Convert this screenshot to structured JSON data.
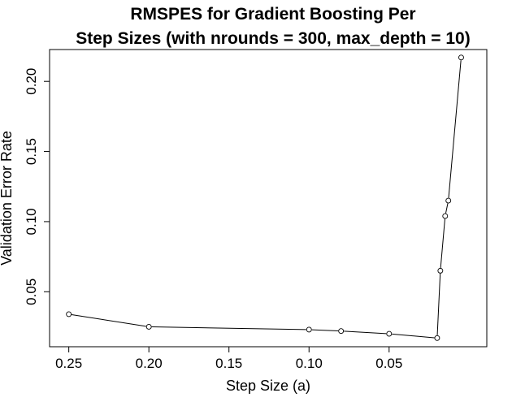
{
  "chart_data": {
    "type": "line",
    "title_lines": [
      "RMSPES for Gradient Boosting Per",
      "Step Sizes (with nrounds = 300, max_depth = 10)"
    ],
    "xlabel": "Step Size (a)",
    "ylabel": "Validation Error Rate",
    "x_reversed": true,
    "xlim": [
      0.262,
      -0.011
    ],
    "ylim": [
      0.0108,
      0.2227
    ],
    "x_ticks": [
      0.25,
      0.2,
      0.15,
      0.1,
      0.05
    ],
    "x_tick_labels": [
      "0.25",
      "0.20",
      "0.15",
      "0.10",
      "0.05"
    ],
    "y_ticks": [
      0.05,
      0.1,
      0.15,
      0.2
    ],
    "y_tick_labels": [
      "0.05",
      "0.10",
      "0.15",
      "0.20"
    ],
    "grid": false,
    "legend": "none",
    "x": [
      0.25,
      0.2,
      0.1,
      0.08,
      0.05,
      0.02,
      0.018,
      0.015,
      0.013,
      0.005
    ],
    "y": [
      0.034,
      0.025,
      0.023,
      0.022,
      0.02,
      0.017,
      0.065,
      0.104,
      0.115,
      0.217
    ]
  }
}
